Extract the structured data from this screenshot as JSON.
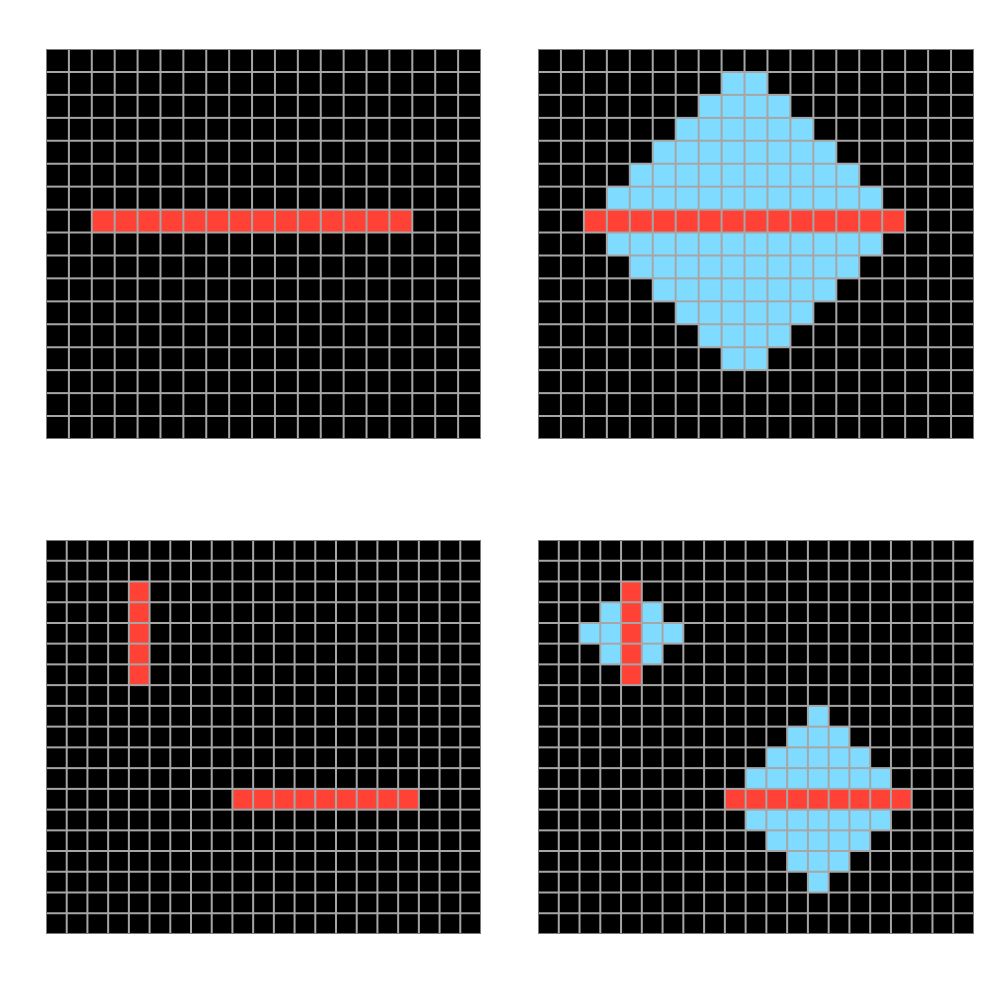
{
  "colors": {
    "background": "#000000",
    "grid_line": "#a6a6a6",
    "border": "#7a7a7a",
    "1": "#ff4136",
    "2": "#7fdbff"
  },
  "examples": [
    {
      "name": "example-1",
      "input": {
        "rows": 17,
        "cols": 19,
        "cells": [
          {
            "r": 7,
            "c": 2,
            "v": 1
          },
          {
            "r": 7,
            "c": 3,
            "v": 1
          },
          {
            "r": 7,
            "c": 4,
            "v": 1
          },
          {
            "r": 7,
            "c": 5,
            "v": 1
          },
          {
            "r": 7,
            "c": 6,
            "v": 1
          },
          {
            "r": 7,
            "c": 7,
            "v": 1
          },
          {
            "r": 7,
            "c": 8,
            "v": 1
          },
          {
            "r": 7,
            "c": 9,
            "v": 1
          },
          {
            "r": 7,
            "c": 10,
            "v": 1
          },
          {
            "r": 7,
            "c": 11,
            "v": 1
          },
          {
            "r": 7,
            "c": 12,
            "v": 1
          },
          {
            "r": 7,
            "c": 13,
            "v": 1
          },
          {
            "r": 7,
            "c": 14,
            "v": 1
          },
          {
            "r": 7,
            "c": 15,
            "v": 1
          }
        ]
      },
      "output": {
        "rows": 17,
        "cols": 19,
        "cells": [
          {
            "r": 1,
            "c": 8,
            "v": 2
          },
          {
            "r": 1,
            "c": 9,
            "v": 2
          },
          {
            "r": 2,
            "c": 7,
            "v": 2
          },
          {
            "r": 2,
            "c": 8,
            "v": 2
          },
          {
            "r": 2,
            "c": 9,
            "v": 2
          },
          {
            "r": 2,
            "c": 10,
            "v": 2
          },
          {
            "r": 3,
            "c": 6,
            "v": 2
          },
          {
            "r": 3,
            "c": 7,
            "v": 2
          },
          {
            "r": 3,
            "c": 8,
            "v": 2
          },
          {
            "r": 3,
            "c": 9,
            "v": 2
          },
          {
            "r": 3,
            "c": 10,
            "v": 2
          },
          {
            "r": 3,
            "c": 11,
            "v": 2
          },
          {
            "r": 4,
            "c": 5,
            "v": 2
          },
          {
            "r": 4,
            "c": 6,
            "v": 2
          },
          {
            "r": 4,
            "c": 7,
            "v": 2
          },
          {
            "r": 4,
            "c": 8,
            "v": 2
          },
          {
            "r": 4,
            "c": 9,
            "v": 2
          },
          {
            "r": 4,
            "c": 10,
            "v": 2
          },
          {
            "r": 4,
            "c": 11,
            "v": 2
          },
          {
            "r": 4,
            "c": 12,
            "v": 2
          },
          {
            "r": 5,
            "c": 4,
            "v": 2
          },
          {
            "r": 5,
            "c": 5,
            "v": 2
          },
          {
            "r": 5,
            "c": 6,
            "v": 2
          },
          {
            "r": 5,
            "c": 7,
            "v": 2
          },
          {
            "r": 5,
            "c": 8,
            "v": 2
          },
          {
            "r": 5,
            "c": 9,
            "v": 2
          },
          {
            "r": 5,
            "c": 10,
            "v": 2
          },
          {
            "r": 5,
            "c": 11,
            "v": 2
          },
          {
            "r": 5,
            "c": 12,
            "v": 2
          },
          {
            "r": 5,
            "c": 13,
            "v": 2
          },
          {
            "r": 6,
            "c": 3,
            "v": 2
          },
          {
            "r": 6,
            "c": 4,
            "v": 2
          },
          {
            "r": 6,
            "c": 5,
            "v": 2
          },
          {
            "r": 6,
            "c": 6,
            "v": 2
          },
          {
            "r": 6,
            "c": 7,
            "v": 2
          },
          {
            "r": 6,
            "c": 8,
            "v": 2
          },
          {
            "r": 6,
            "c": 9,
            "v": 2
          },
          {
            "r": 6,
            "c": 10,
            "v": 2
          },
          {
            "r": 6,
            "c": 11,
            "v": 2
          },
          {
            "r": 6,
            "c": 12,
            "v": 2
          },
          {
            "r": 6,
            "c": 13,
            "v": 2
          },
          {
            "r": 6,
            "c": 14,
            "v": 2
          },
          {
            "r": 7,
            "c": 2,
            "v": 1
          },
          {
            "r": 7,
            "c": 3,
            "v": 1
          },
          {
            "r": 7,
            "c": 4,
            "v": 1
          },
          {
            "r": 7,
            "c": 5,
            "v": 1
          },
          {
            "r": 7,
            "c": 6,
            "v": 1
          },
          {
            "r": 7,
            "c": 7,
            "v": 1
          },
          {
            "r": 7,
            "c": 8,
            "v": 1
          },
          {
            "r": 7,
            "c": 9,
            "v": 1
          },
          {
            "r": 7,
            "c": 10,
            "v": 1
          },
          {
            "r": 7,
            "c": 11,
            "v": 1
          },
          {
            "r": 7,
            "c": 12,
            "v": 1
          },
          {
            "r": 7,
            "c": 13,
            "v": 1
          },
          {
            "r": 7,
            "c": 14,
            "v": 1
          },
          {
            "r": 7,
            "c": 15,
            "v": 1
          },
          {
            "r": 8,
            "c": 3,
            "v": 2
          },
          {
            "r": 8,
            "c": 4,
            "v": 2
          },
          {
            "r": 8,
            "c": 5,
            "v": 2
          },
          {
            "r": 8,
            "c": 6,
            "v": 2
          },
          {
            "r": 8,
            "c": 7,
            "v": 2
          },
          {
            "r": 8,
            "c": 8,
            "v": 2
          },
          {
            "r": 8,
            "c": 9,
            "v": 2
          },
          {
            "r": 8,
            "c": 10,
            "v": 2
          },
          {
            "r": 8,
            "c": 11,
            "v": 2
          },
          {
            "r": 8,
            "c": 12,
            "v": 2
          },
          {
            "r": 8,
            "c": 13,
            "v": 2
          },
          {
            "r": 8,
            "c": 14,
            "v": 2
          },
          {
            "r": 9,
            "c": 4,
            "v": 2
          },
          {
            "r": 9,
            "c": 5,
            "v": 2
          },
          {
            "r": 9,
            "c": 6,
            "v": 2
          },
          {
            "r": 9,
            "c": 7,
            "v": 2
          },
          {
            "r": 9,
            "c": 8,
            "v": 2
          },
          {
            "r": 9,
            "c": 9,
            "v": 2
          },
          {
            "r": 9,
            "c": 10,
            "v": 2
          },
          {
            "r": 9,
            "c": 11,
            "v": 2
          },
          {
            "r": 9,
            "c": 12,
            "v": 2
          },
          {
            "r": 9,
            "c": 13,
            "v": 2
          },
          {
            "r": 10,
            "c": 5,
            "v": 2
          },
          {
            "r": 10,
            "c": 6,
            "v": 2
          },
          {
            "r": 10,
            "c": 7,
            "v": 2
          },
          {
            "r": 10,
            "c": 8,
            "v": 2
          },
          {
            "r": 10,
            "c": 9,
            "v": 2
          },
          {
            "r": 10,
            "c": 10,
            "v": 2
          },
          {
            "r": 10,
            "c": 11,
            "v": 2
          },
          {
            "r": 10,
            "c": 12,
            "v": 2
          },
          {
            "r": 11,
            "c": 6,
            "v": 2
          },
          {
            "r": 11,
            "c": 7,
            "v": 2
          },
          {
            "r": 11,
            "c": 8,
            "v": 2
          },
          {
            "r": 11,
            "c": 9,
            "v": 2
          },
          {
            "r": 11,
            "c": 10,
            "v": 2
          },
          {
            "r": 11,
            "c": 11,
            "v": 2
          },
          {
            "r": 12,
            "c": 7,
            "v": 2
          },
          {
            "r": 12,
            "c": 8,
            "v": 2
          },
          {
            "r": 12,
            "c": 9,
            "v": 2
          },
          {
            "r": 12,
            "c": 10,
            "v": 2
          },
          {
            "r": 13,
            "c": 8,
            "v": 2
          },
          {
            "r": 13,
            "c": 9,
            "v": 2
          }
        ]
      }
    },
    {
      "name": "example-2",
      "input": {
        "rows": 19,
        "cols": 21,
        "cells": [
          {
            "r": 2,
            "c": 4,
            "v": 1
          },
          {
            "r": 3,
            "c": 4,
            "v": 1
          },
          {
            "r": 4,
            "c": 4,
            "v": 1
          },
          {
            "r": 5,
            "c": 4,
            "v": 1
          },
          {
            "r": 6,
            "c": 4,
            "v": 1
          },
          {
            "r": 12,
            "c": 9,
            "v": 1
          },
          {
            "r": 12,
            "c": 10,
            "v": 1
          },
          {
            "r": 12,
            "c": 11,
            "v": 1
          },
          {
            "r": 12,
            "c": 12,
            "v": 1
          },
          {
            "r": 12,
            "c": 13,
            "v": 1
          },
          {
            "r": 12,
            "c": 14,
            "v": 1
          },
          {
            "r": 12,
            "c": 15,
            "v": 1
          },
          {
            "r": 12,
            "c": 16,
            "v": 1
          },
          {
            "r": 12,
            "c": 17,
            "v": 1
          }
        ]
      },
      "output": {
        "rows": 19,
        "cols": 21,
        "cells": [
          {
            "r": 2,
            "c": 4,
            "v": 1
          },
          {
            "r": 3,
            "c": 3,
            "v": 2
          },
          {
            "r": 3,
            "c": 4,
            "v": 1
          },
          {
            "r": 3,
            "c": 5,
            "v": 2
          },
          {
            "r": 4,
            "c": 2,
            "v": 2
          },
          {
            "r": 4,
            "c": 3,
            "v": 2
          },
          {
            "r": 4,
            "c": 4,
            "v": 1
          },
          {
            "r": 4,
            "c": 5,
            "v": 2
          },
          {
            "r": 4,
            "c": 6,
            "v": 2
          },
          {
            "r": 5,
            "c": 3,
            "v": 2
          },
          {
            "r": 5,
            "c": 4,
            "v": 1
          },
          {
            "r": 5,
            "c": 5,
            "v": 2
          },
          {
            "r": 6,
            "c": 4,
            "v": 1
          },
          {
            "r": 8,
            "c": 13,
            "v": 2
          },
          {
            "r": 9,
            "c": 12,
            "v": 2
          },
          {
            "r": 9,
            "c": 13,
            "v": 2
          },
          {
            "r": 9,
            "c": 14,
            "v": 2
          },
          {
            "r": 10,
            "c": 11,
            "v": 2
          },
          {
            "r": 10,
            "c": 12,
            "v": 2
          },
          {
            "r": 10,
            "c": 13,
            "v": 2
          },
          {
            "r": 10,
            "c": 14,
            "v": 2
          },
          {
            "r": 10,
            "c": 15,
            "v": 2
          },
          {
            "r": 11,
            "c": 10,
            "v": 2
          },
          {
            "r": 11,
            "c": 11,
            "v": 2
          },
          {
            "r": 11,
            "c": 12,
            "v": 2
          },
          {
            "r": 11,
            "c": 13,
            "v": 2
          },
          {
            "r": 11,
            "c": 14,
            "v": 2
          },
          {
            "r": 11,
            "c": 15,
            "v": 2
          },
          {
            "r": 11,
            "c": 16,
            "v": 2
          },
          {
            "r": 12,
            "c": 9,
            "v": 1
          },
          {
            "r": 12,
            "c": 10,
            "v": 1
          },
          {
            "r": 12,
            "c": 11,
            "v": 1
          },
          {
            "r": 12,
            "c": 12,
            "v": 1
          },
          {
            "r": 12,
            "c": 13,
            "v": 1
          },
          {
            "r": 12,
            "c": 14,
            "v": 1
          },
          {
            "r": 12,
            "c": 15,
            "v": 1
          },
          {
            "r": 12,
            "c": 16,
            "v": 1
          },
          {
            "r": 12,
            "c": 17,
            "v": 1
          },
          {
            "r": 13,
            "c": 10,
            "v": 2
          },
          {
            "r": 13,
            "c": 11,
            "v": 2
          },
          {
            "r": 13,
            "c": 12,
            "v": 2
          },
          {
            "r": 13,
            "c": 13,
            "v": 2
          },
          {
            "r": 13,
            "c": 14,
            "v": 2
          },
          {
            "r": 13,
            "c": 15,
            "v": 2
          },
          {
            "r": 13,
            "c": 16,
            "v": 2
          },
          {
            "r": 14,
            "c": 11,
            "v": 2
          },
          {
            "r": 14,
            "c": 12,
            "v": 2
          },
          {
            "r": 14,
            "c": 13,
            "v": 2
          },
          {
            "r": 14,
            "c": 14,
            "v": 2
          },
          {
            "r": 14,
            "c": 15,
            "v": 2
          },
          {
            "r": 15,
            "c": 12,
            "v": 2
          },
          {
            "r": 15,
            "c": 13,
            "v": 2
          },
          {
            "r": 15,
            "c": 14,
            "v": 2
          },
          {
            "r": 16,
            "c": 13,
            "v": 2
          }
        ]
      }
    }
  ]
}
